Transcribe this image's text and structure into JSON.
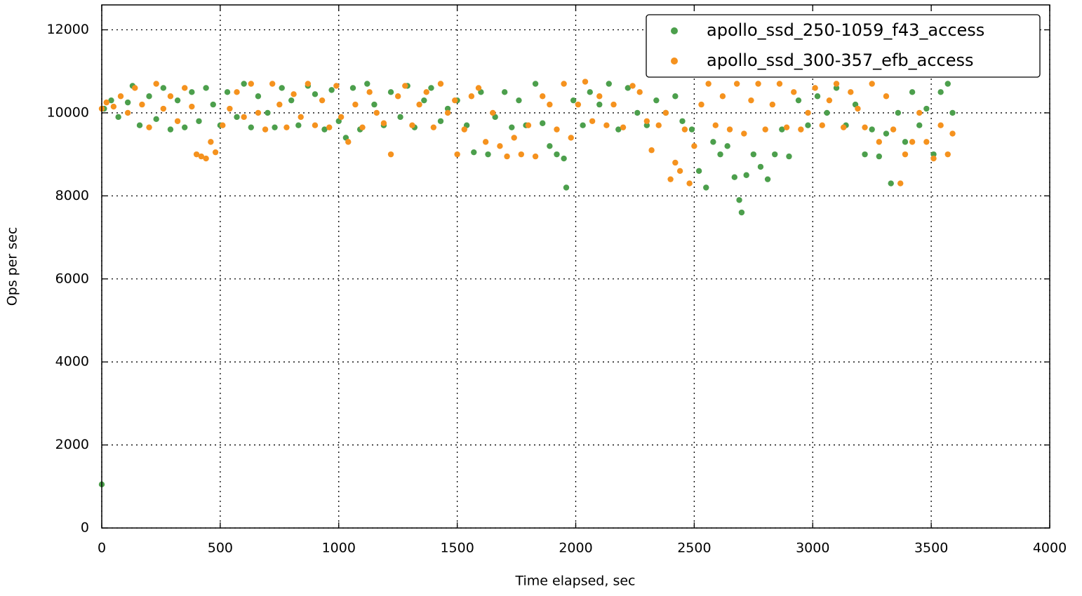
{
  "chart_data": {
    "type": "scatter",
    "x_label": "Time elapsed, sec",
    "y_label": "Ops per sec",
    "xlim": [
      0,
      4000
    ],
    "xticks": [
      0,
      500,
      1000,
      1500,
      2000,
      2500,
      3000,
      3500,
      4000
    ],
    "ylim": [
      0,
      12600
    ],
    "yticks": [
      0,
      2000,
      4000,
      6000,
      8000,
      10000,
      12000
    ],
    "grid": true,
    "legend": "upper right",
    "series": [
      {
        "name": "apollo_ssd_250-1059_f43_access",
        "color": "#4c9f4c",
        "x": [
          0,
          10,
          40,
          70,
          110,
          130,
          160,
          200,
          230,
          260,
          290,
          320,
          350,
          380,
          410,
          440,
          470,
          500,
          530,
          570,
          600,
          630,
          660,
          700,
          730,
          760,
          800,
          830,
          870,
          900,
          940,
          970,
          1000,
          1030,
          1060,
          1090,
          1120,
          1150,
          1190,
          1220,
          1260,
          1290,
          1320,
          1360,
          1390,
          1430,
          1460,
          1500,
          1540,
          1570,
          1600,
          1630,
          1660,
          1700,
          1730,
          1760,
          1790,
          1830,
          1860,
          1890,
          1920,
          1950,
          1960,
          1990,
          2030,
          2060,
          2100,
          2140,
          2180,
          2220,
          2260,
          2300,
          2340,
          2380,
          2420,
          2450,
          2490,
          2520,
          2550,
          2580,
          2610,
          2640,
          2670,
          2690,
          2700,
          2720,
          2750,
          2780,
          2810,
          2840,
          2870,
          2900,
          2940,
          2980,
          3020,
          3060,
          3100,
          3140,
          3180,
          3220,
          3250,
          3280,
          3310,
          3330,
          3360,
          3390,
          3420,
          3450,
          3480,
          3510,
          3540,
          3570,
          3590
        ],
        "values": [
          1050,
          10100,
          10300,
          9900,
          10250,
          10650,
          9700,
          10400,
          9850,
          10600,
          9600,
          10300,
          9650,
          10500,
          9800,
          10600,
          10200,
          9700,
          10500,
          9900,
          10700,
          9650,
          10400,
          10000,
          9650,
          10600,
          10300,
          9700,
          10650,
          10450,
          9600,
          10550,
          9800,
          9400,
          10600,
          9600,
          10700,
          10200,
          9700,
          10500,
          9900,
          10650,
          9650,
          10300,
          10600,
          9800,
          10100,
          10300,
          9700,
          9050,
          10500,
          9000,
          9900,
          10500,
          9650,
          10300,
          9700,
          10700,
          9750,
          9200,
          9000,
          8900,
          8200,
          10300,
          9700,
          10500,
          10200,
          10700,
          9600,
          10600,
          10000,
          9700,
          10300,
          10000,
          10400,
          9800,
          9600,
          8600,
          8200,
          9300,
          9000,
          9200,
          8450,
          7900,
          7600,
          8500,
          9000,
          8700,
          8400,
          9000,
          9600,
          8950,
          10300,
          9700,
          10400,
          10000,
          10600,
          9700,
          10200,
          9000,
          9600,
          8950,
          9500,
          8300,
          10000,
          9300,
          10500,
          9700,
          10100,
          9000,
          10500,
          10700,
          10000
        ]
      },
      {
        "name": "apollo_ssd_300-357_efb_access",
        "color": "#f5921e",
        "x": [
          0,
          20,
          50,
          80,
          110,
          140,
          170,
          200,
          230,
          260,
          290,
          320,
          350,
          380,
          400,
          420,
          440,
          460,
          480,
          510,
          540,
          570,
          600,
          630,
          660,
          690,
          720,
          750,
          780,
          810,
          840,
          870,
          900,
          930,
          960,
          990,
          1010,
          1040,
          1070,
          1100,
          1130,
          1160,
          1190,
          1220,
          1250,
          1280,
          1310,
          1340,
          1370,
          1400,
          1430,
          1460,
          1490,
          1500,
          1530,
          1560,
          1590,
          1620,
          1650,
          1680,
          1710,
          1740,
          1770,
          1800,
          1830,
          1860,
          1890,
          1920,
          1950,
          1980,
          2010,
          2040,
          2070,
          2100,
          2130,
          2160,
          2200,
          2240,
          2270,
          2300,
          2320,
          2350,
          2380,
          2400,
          2420,
          2440,
          2460,
          2480,
          2500,
          2530,
          2560,
          2590,
          2620,
          2650,
          2680,
          2710,
          2740,
          2770,
          2800,
          2830,
          2860,
          2890,
          2920,
          2950,
          2980,
          3010,
          3040,
          3070,
          3100,
          3130,
          3160,
          3190,
          3220,
          3250,
          3280,
          3310,
          3340,
          3370,
          3390,
          3420,
          3450,
          3480,
          3510,
          3540,
          3570,
          3590
        ],
        "values": [
          10100,
          10250,
          10150,
          10400,
          10000,
          10600,
          10200,
          9650,
          10700,
          10100,
          10400,
          9800,
          10600,
          10150,
          9000,
          8950,
          8900,
          9300,
          9050,
          9700,
          10100,
          10500,
          9900,
          10700,
          10000,
          9600,
          10700,
          10200,
          9650,
          10450,
          9900,
          10700,
          9700,
          10300,
          9650,
          10650,
          9900,
          9300,
          10200,
          9650,
          10500,
          10000,
          9750,
          9000,
          10400,
          10650,
          9700,
          10200,
          10500,
          9650,
          10700,
          10000,
          10300,
          9000,
          9600,
          10400,
          10600,
          9300,
          10000,
          9200,
          8950,
          9400,
          9000,
          9700,
          8950,
          10400,
          10200,
          9600,
          10700,
          9400,
          10200,
          10750,
          9800,
          10400,
          9700,
          10200,
          9650,
          10650,
          10500,
          9800,
          9100,
          9700,
          10000,
          8400,
          8800,
          8600,
          9600,
          8300,
          9200,
          10200,
          10700,
          9700,
          10400,
          9600,
          10700,
          9500,
          10300,
          10700,
          9600,
          10200,
          10700,
          9650,
          10500,
          9600,
          10000,
          10600,
          9700,
          10300,
          10700,
          9650,
          10500,
          10100,
          9650,
          10700,
          9300,
          10400,
          9600,
          8300,
          9000,
          9300,
          10000,
          9300,
          8900,
          9700,
          9000,
          9500
        ]
      }
    ]
  }
}
